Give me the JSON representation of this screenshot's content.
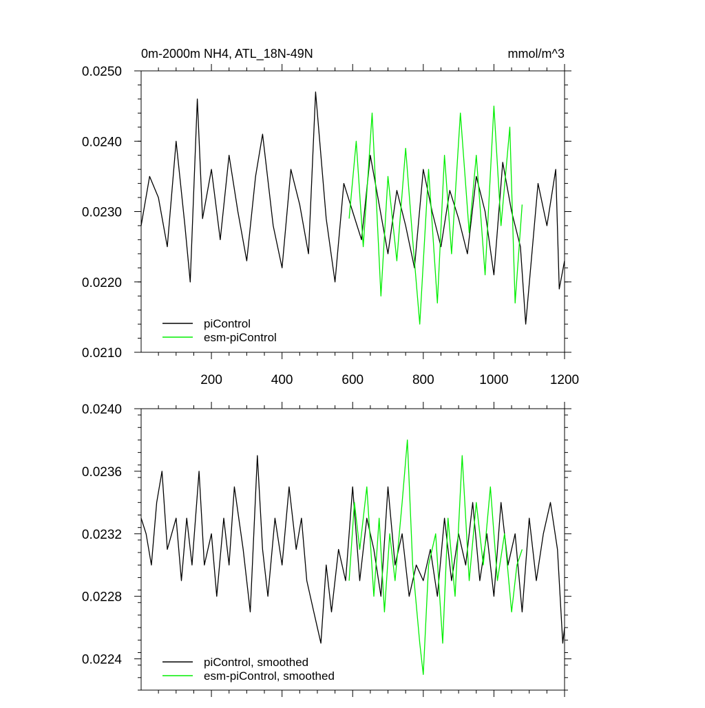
{
  "figure": {
    "title_left": "0m-2000m NH4, ATL_18N-49N",
    "title_right": "mmol/m^3"
  },
  "colors": {
    "piControl": "#000000",
    "esm_piControl": "#00ee00"
  },
  "chart_data": [
    {
      "type": "line",
      "title": "0m-2000m NH4, ATL_18N-49N",
      "units_label": "mmol/m^3",
      "xlim": [
        1,
        1200
      ],
      "ylim": [
        0.021,
        0.025
      ],
      "x_ticks": [
        200,
        400,
        600,
        800,
        1000,
        1200
      ],
      "x_tick_labels": [
        "200",
        "400",
        "600",
        "800",
        "1000",
        "1200"
      ],
      "y_ticks": [
        0.021,
        0.022,
        0.023,
        0.024,
        0.025
      ],
      "y_tick_labels": [
        "0.0210",
        "0.0220",
        "0.0230",
        "0.0240",
        "0.0250"
      ],
      "legend_position": "bottom-left",
      "series": [
        {
          "name": "piControl",
          "color": "#000000",
          "x": [
            1,
            25,
            50,
            75,
            100,
            125,
            140,
            160,
            175,
            200,
            225,
            250,
            275,
            300,
            325,
            345,
            375,
            400,
            425,
            450,
            475,
            495,
            525,
            550,
            575,
            600,
            625,
            650,
            675,
            700,
            725,
            750,
            775,
            800,
            825,
            850,
            875,
            900,
            925,
            950,
            975,
            1000,
            1025,
            1050,
            1075,
            1090,
            1125,
            1150,
            1175,
            1185,
            1200
          ],
          "values": [
            0.0228,
            0.0235,
            0.0232,
            0.0225,
            0.024,
            0.0228,
            0.022,
            0.0246,
            0.0229,
            0.0236,
            0.0226,
            0.0238,
            0.023,
            0.0223,
            0.0235,
            0.0241,
            0.0228,
            0.0222,
            0.0236,
            0.0231,
            0.0224,
            0.0247,
            0.0229,
            0.022,
            0.0234,
            0.023,
            0.0226,
            0.0238,
            0.0231,
            0.0224,
            0.0233,
            0.0228,
            0.0222,
            0.0236,
            0.023,
            0.0225,
            0.0233,
            0.0229,
            0.0224,
            0.0235,
            0.023,
            0.0221,
            0.0237,
            0.023,
            0.0225,
            0.0214,
            0.0234,
            0.0228,
            0.0236,
            0.0219,
            0.0223
          ]
        },
        {
          "name": "esm-piControl",
          "color": "#00ee00",
          "x": [
            590,
            610,
            630,
            655,
            680,
            700,
            725,
            750,
            770,
            790,
            815,
            840,
            860,
            880,
            905,
            930,
            950,
            975,
            1000,
            1020,
            1045,
            1060,
            1080
          ],
          "values": [
            0.0229,
            0.024,
            0.0225,
            0.0244,
            0.0218,
            0.0235,
            0.0223,
            0.0239,
            0.0226,
            0.0214,
            0.0236,
            0.0217,
            0.0238,
            0.0224,
            0.0244,
            0.0227,
            0.0238,
            0.0221,
            0.0245,
            0.0228,
            0.0242,
            0.0217,
            0.0231
          ]
        }
      ]
    },
    {
      "type": "line",
      "xlim": [
        1,
        1200
      ],
      "ylim": [
        0.0222,
        0.024
      ],
      "y_ticks": [
        0.0224,
        0.0228,
        0.0232,
        0.0236,
        0.024
      ],
      "y_tick_labels": [
        "0.0224",
        "0.0228",
        "0.0232",
        "0.0236",
        "0.0240"
      ],
      "legend_position": "bottom-left",
      "series": [
        {
          "name": "piControl, smoothed",
          "color": "#000000",
          "x": [
            1,
            15,
            30,
            45,
            60,
            75,
            100,
            115,
            130,
            145,
            165,
            180,
            200,
            215,
            235,
            250,
            265,
            290,
            310,
            330,
            345,
            360,
            380,
            400,
            420,
            440,
            455,
            470,
            490,
            510,
            525,
            540,
            560,
            580,
            600,
            620,
            640,
            660,
            680,
            700,
            720,
            740,
            760,
            780,
            800,
            820,
            840,
            860,
            880,
            900,
            920,
            940,
            960,
            980,
            1000,
            1020,
            1040,
            1060,
            1080,
            1100,
            1120,
            1140,
            1160,
            1180,
            1195,
            1200
          ],
          "values": [
            0.0233,
            0.0232,
            0.023,
            0.0234,
            0.0236,
            0.0231,
            0.0233,
            0.0229,
            0.0233,
            0.023,
            0.0236,
            0.023,
            0.0232,
            0.0228,
            0.0233,
            0.023,
            0.0235,
            0.0231,
            0.0227,
            0.0237,
            0.0231,
            0.0228,
            0.0233,
            0.023,
            0.0235,
            0.0231,
            0.0233,
            0.0229,
            0.0227,
            0.0225,
            0.023,
            0.0227,
            0.0231,
            0.0229,
            0.0235,
            0.0229,
            0.0233,
            0.0231,
            0.0228,
            0.0235,
            0.023,
            0.0232,
            0.0228,
            0.023,
            0.0229,
            0.0231,
            0.0228,
            0.0233,
            0.0229,
            0.0232,
            0.023,
            0.0234,
            0.0229,
            0.0232,
            0.0228,
            0.0234,
            0.023,
            0.0232,
            0.0227,
            0.0233,
            0.0229,
            0.0232,
            0.0234,
            0.0231,
            0.0225,
            0.0226
          ]
        },
        {
          "name": "esm-piControl, smoothed",
          "color": "#00ee00",
          "x": [
            590,
            605,
            620,
            640,
            660,
            675,
            690,
            705,
            720,
            740,
            755,
            770,
            790,
            800,
            815,
            835,
            855,
            870,
            890,
            910,
            930,
            950,
            970,
            990,
            1010,
            1030,
            1050,
            1065,
            1080
          ],
          "values": [
            0.0229,
            0.0234,
            0.0231,
            0.0235,
            0.0228,
            0.0233,
            0.0227,
            0.0232,
            0.0229,
            0.0234,
            0.0238,
            0.023,
            0.0225,
            0.0223,
            0.023,
            0.0232,
            0.0225,
            0.0233,
            0.0228,
            0.0237,
            0.0229,
            0.0234,
            0.023,
            0.0235,
            0.0229,
            0.0232,
            0.0227,
            0.023,
            0.0231
          ]
        }
      ]
    }
  ],
  "legend": {
    "top": [
      "piControl",
      "esm-piControl"
    ],
    "bottom": [
      "piControl, smoothed",
      "esm-piControl, smoothed"
    ]
  }
}
